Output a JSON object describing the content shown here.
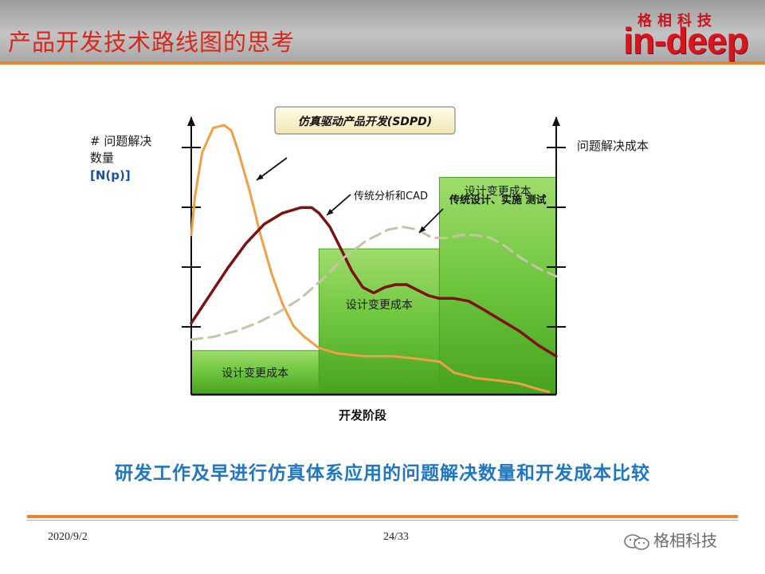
{
  "slide": {
    "title": "产品开发技术路线图的思考",
    "logo_cn": "格相科技",
    "logo_en": "in-deep",
    "caption": "研发工作及早进行仿真体系应用的问题解决数量和开发成本比较",
    "date": "2020/9/2",
    "page": "24/33",
    "watermark": "格相科技",
    "watermark_icon": "wechat-icon"
  },
  "colors": {
    "accent_orange": "#e8852a",
    "title_red": "#d42a1e",
    "caption_blue": "#1f76c4",
    "bar_green": "#6dc53c",
    "sdpd_curve": "#f0a044",
    "cad_curve": "#7a1212",
    "traditional_curve": "#c9c2a8"
  },
  "chart_data": {
    "type": "area",
    "title": "仿真驱动产品开发(SDPD)",
    "ylabel_left": [
      "# 问题解决",
      "数量",
      "[N(p)]"
    ],
    "ylabel_right": "问题解决成本",
    "xlabel": "开发阶段",
    "grid": false,
    "ylim": [
      0,
      100
    ],
    "x_range": [
      0,
      100
    ],
    "cost_steps": [
      {
        "label": "设计变更成本",
        "x_start": 0,
        "x_end": 35,
        "value": 16
      },
      {
        "label": "设计变更成本",
        "x_start": 35,
        "x_end": 68,
        "value": 53
      },
      {
        "label": "设计变更成本",
        "x_start": 68,
        "x_end": 100,
        "value": 79
      }
    ],
    "series": [
      {
        "name": "仿真驱动产品开发(SDPD)",
        "style": "solid",
        "x": [
          0,
          1,
          3,
          6,
          9,
          11,
          13,
          16,
          19,
          22,
          25,
          28,
          31,
          35,
          40,
          47,
          55,
          62,
          68,
          72,
          78,
          85,
          90,
          95,
          98
        ],
        "y": [
          58,
          72,
          88,
          97,
          98,
          96,
          88,
          74,
          58,
          44,
          33,
          25,
          21,
          17,
          15,
          14,
          14,
          13,
          12,
          8,
          6,
          5,
          4,
          2,
          1
        ]
      },
      {
        "name": "传统分析和CAD",
        "style": "solid",
        "x": [
          0,
          5,
          10,
          15,
          20,
          25,
          30,
          33,
          35,
          38,
          41,
          44,
          47,
          50,
          53,
          56,
          59,
          62,
          65,
          68,
          72,
          76,
          80,
          85,
          90,
          95,
          100
        ],
        "y": [
          26,
          36,
          46,
          55,
          62,
          66,
          68,
          68,
          66,
          61,
          53,
          45,
          39,
          37,
          39,
          40,
          40,
          38,
          36,
          35,
          35,
          34,
          31,
          27,
          23,
          18,
          14
        ]
      },
      {
        "name": "传统设计、实施 测试",
        "style": "dashed",
        "x": [
          0,
          6,
          12,
          18,
          24,
          30,
          36,
          42,
          48,
          54,
          58,
          62,
          66,
          70,
          74,
          78,
          82,
          86,
          90,
          95,
          100
        ],
        "y": [
          20,
          21,
          23,
          26,
          30,
          35,
          42,
          50,
          56,
          60,
          61,
          60,
          57,
          57,
          58,
          58,
          57,
          54,
          50,
          46,
          43
        ]
      }
    ],
    "annotations": [
      {
        "text": "仿真驱动产品开发(SDPD)",
        "boxed": true
      },
      {
        "text": "传统分析和CAD",
        "arrow": true
      },
      {
        "text": "传统设计、实施 测试",
        "arrow": true
      },
      {
        "text": "",
        "arrow": true,
        "points_to": "仿真驱动产品开发(SDPD)"
      }
    ]
  }
}
